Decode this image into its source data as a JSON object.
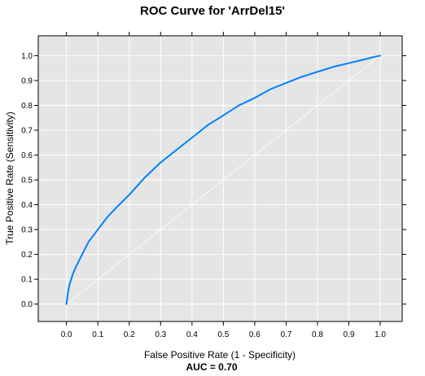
{
  "chart_data": {
    "type": "line",
    "title": "ROC Curve for 'ArrDel15'",
    "xlabel": "False Positive Rate (1 - Specificity)",
    "ylabel": "True Positive Rate (Sensitivity)",
    "annotation": "AUC =  0.70",
    "xlim": [
      -0.09,
      1.07
    ],
    "ylim": [
      -0.07,
      1.08
    ],
    "xticks": [
      "0.0",
      "0.1",
      "0.2",
      "0.3",
      "0.4",
      "0.5",
      "0.6",
      "0.7",
      "0.8",
      "0.9",
      "1.0"
    ],
    "yticks": [
      "0.0",
      "0.1",
      "0.2",
      "0.3",
      "0.4",
      "0.5",
      "0.6",
      "0.7",
      "0.8",
      "0.9",
      "1.0"
    ],
    "grid": true,
    "background": "#e5e5e5",
    "series": [
      {
        "color": "#0080ff",
        "x": [
          0.0,
          0.005,
          0.01,
          0.02,
          0.03,
          0.05,
          0.07,
          0.1,
          0.13,
          0.16,
          0.2,
          0.25,
          0.3,
          0.35,
          0.4,
          0.45,
          0.5,
          0.55,
          0.6,
          0.65,
          0.7,
          0.75,
          0.8,
          0.85,
          0.9,
          0.95,
          0.98,
          1.0
        ],
        "y": [
          0.0,
          0.05,
          0.08,
          0.12,
          0.15,
          0.2,
          0.25,
          0.3,
          0.35,
          0.39,
          0.44,
          0.51,
          0.57,
          0.62,
          0.67,
          0.72,
          0.76,
          0.8,
          0.83,
          0.865,
          0.89,
          0.915,
          0.935,
          0.955,
          0.97,
          0.985,
          0.995,
          1.0
        ]
      },
      {
        "color": "#ffffff",
        "x": [
          0,
          1
        ],
        "y": [
          0,
          1
        ]
      }
    ]
  }
}
